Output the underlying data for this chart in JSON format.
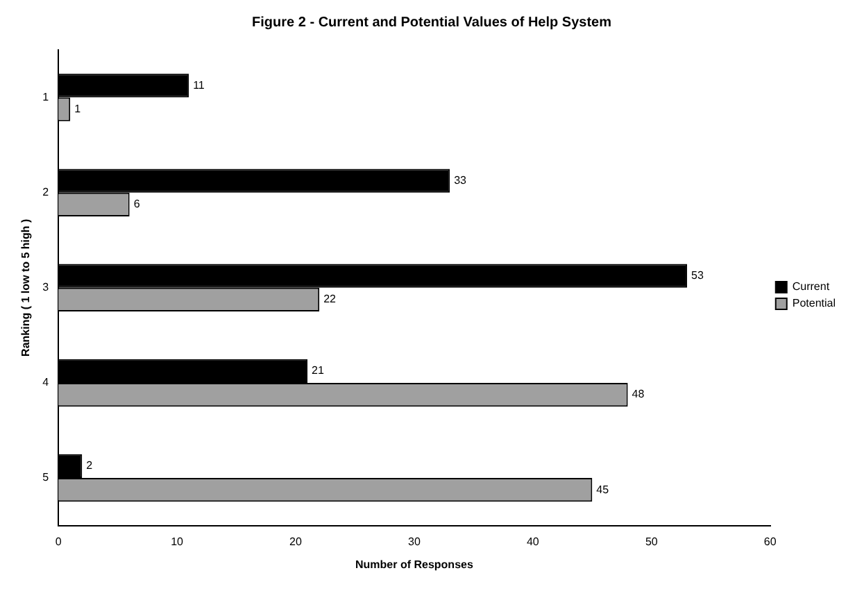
{
  "chart_data": {
    "type": "bar",
    "orientation": "horizontal",
    "title": "Figure 2 - Current and Potential Values of Help System",
    "xlabel": "Number of Responses",
    "ylabel": "Ranking ( 1 low to 5 high )",
    "categories": [
      "1",
      "2",
      "3",
      "4",
      "5"
    ],
    "series": [
      {
        "name": "Current",
        "color": "#000000",
        "values": [
          11,
          33,
          53,
          21,
          2
        ]
      },
      {
        "name": "Potential",
        "color": "#a0a0a0",
        "values": [
          1,
          6,
          22,
          48,
          45
        ]
      }
    ],
    "xlim": [
      0,
      60
    ],
    "xticks": [
      0,
      10,
      20,
      30,
      40,
      50,
      60
    ],
    "grid": false,
    "legend": "right",
    "data_labels": true
  }
}
